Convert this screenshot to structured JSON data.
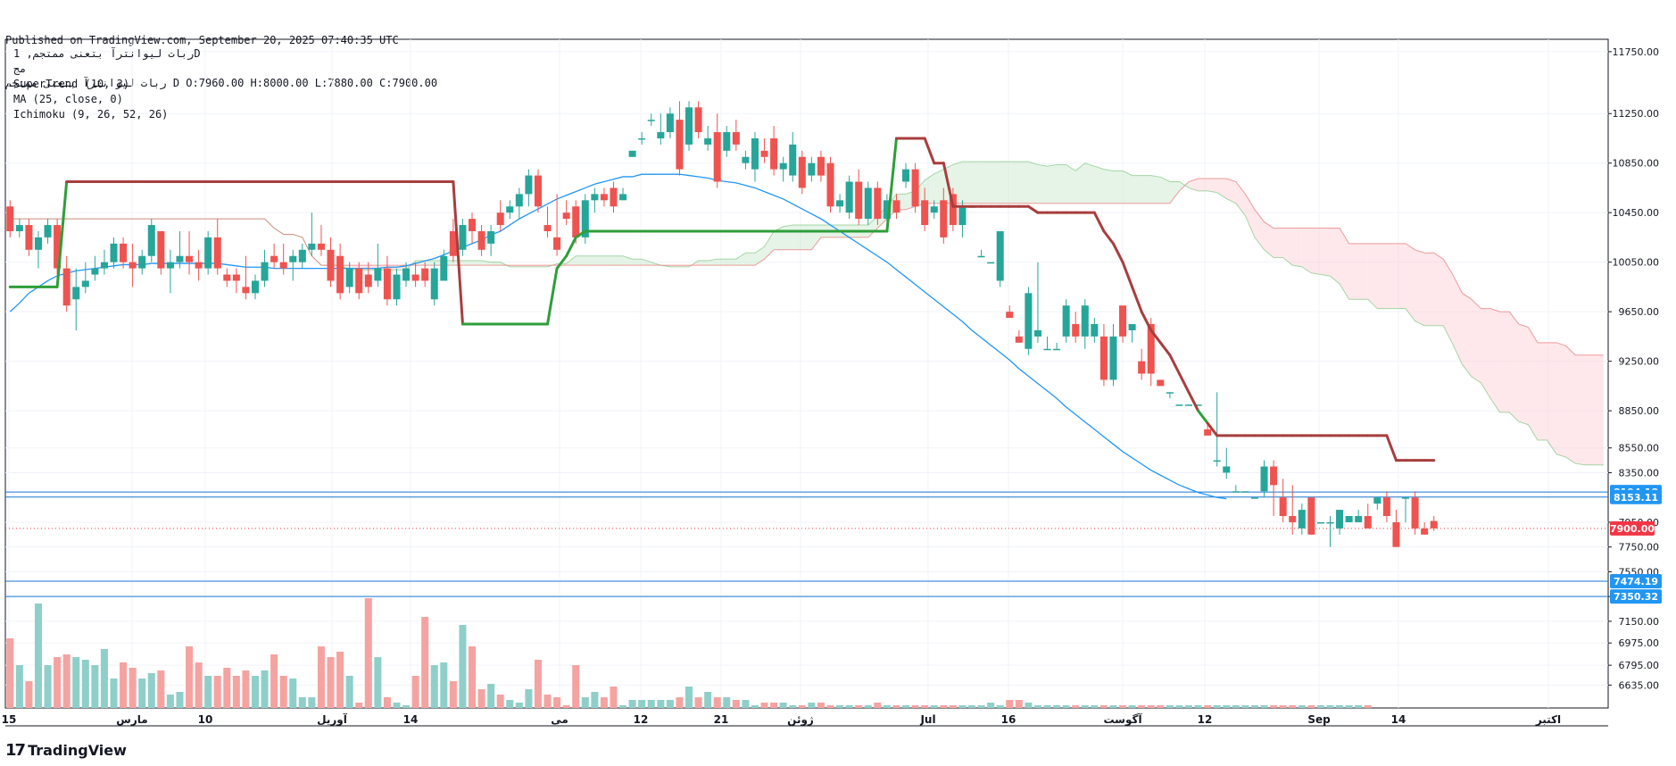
{
  "header": {
    "published": "Published on TradingView.com, September 20, 2025 07:40:35 UTC",
    "symbol": "ربات لیوانترآ بتعنی ممتجم",
    "ohlc": "D O:7960.00 H:8000.00 L:7880.00 C:7900.00"
  },
  "legend": {
    "title": "ربات لیوانترآ بتعنی ممتجم, 1D",
    "sub": "مج",
    "supertrend": "SuperTrend (10, 3)",
    "ma": "MA (25, close, 0)",
    "ichimoku": "Ichimoku (9, 26, 52, 26)"
  },
  "footer": {
    "brand": "TradingView",
    "logo": "17"
  },
  "colors": {
    "up": "#26a69a",
    "down": "#ef5350",
    "vol_up": "#8fcfc9",
    "vol_down": "#f5a3a1",
    "ma": "#2196f3",
    "st_up": "#2e9e3a",
    "st_down": "#a83e3e",
    "cloud_bull": "#c8e6c9",
    "cloud_bear": "#ffcdd2",
    "hline": "#1976d2",
    "price_label": "#2196f3",
    "last_price": "#f23645"
  },
  "chart_data": {
    "type": "candlestick",
    "title": "ربات لیوانترآ بتعنی ممتجم, 1D",
    "ylim": [
      6450,
      11850
    ],
    "y_ticks": [
      11750,
      11250,
      10850,
      10450,
      10050,
      9650,
      9250,
      8850,
      8550,
      8350,
      7950,
      7750,
      7550,
      7350,
      7150,
      6975,
      6795,
      6635
    ],
    "x_ticks": [
      "15",
      "مارس",
      "10",
      "آوریل",
      "14",
      "می",
      "12",
      "21",
      "ژوئن",
      "Jul",
      "16",
      "آگوست",
      "12",
      "Sep",
      "14",
      "اکتبر"
    ],
    "last_price": 7900.0,
    "horizontal_lines": [
      8194.18,
      8153.11,
      7474.19,
      7350.32
    ],
    "candles": [
      [
        10500,
        10550,
        10250,
        10300
      ],
      [
        10300,
        10400,
        10250,
        10350
      ],
      [
        10350,
        10400,
        10100,
        10150
      ],
      [
        10150,
        10300,
        10000,
        10250
      ],
      [
        10250,
        10400,
        10200,
        10350
      ],
      [
        10350,
        10400,
        9950,
        10000
      ],
      [
        10000,
        10100,
        9650,
        9700
      ],
      [
        9750,
        10000,
        9500,
        9850
      ],
      [
        9850,
        10050,
        9800,
        9900
      ],
      [
        9950,
        10100,
        9900,
        10000
      ],
      [
        10000,
        10150,
        9950,
        10050
      ],
      [
        10050,
        10250,
        10000,
        10200
      ],
      [
        10200,
        10250,
        10000,
        10050
      ],
      [
        10050,
        10200,
        9850,
        10000
      ],
      [
        10000,
        10150,
        9950,
        10100
      ],
      [
        10100,
        10400,
        10050,
        10350
      ],
      [
        10300,
        10300,
        9950,
        10000
      ],
      [
        10000,
        10150,
        9800,
        10050
      ],
      [
        10050,
        10300,
        10000,
        10100
      ],
      [
        10100,
        10300,
        9950,
        10050
      ],
      [
        10050,
        10150,
        9900,
        10000
      ],
      [
        10000,
        10300,
        9950,
        10250
      ],
      [
        10250,
        10400,
        9950,
        10000
      ],
      [
        9950,
        10000,
        9850,
        9900
      ],
      [
        9950,
        10000,
        9800,
        9900
      ],
      [
        9850,
        10100,
        9750,
        9800
      ],
      [
        9800,
        9950,
        9750,
        9900
      ],
      [
        9900,
        10150,
        9850,
        10050
      ],
      [
        10100,
        10200,
        10000,
        10050
      ],
      [
        10050,
        10200,
        9950,
        10000
      ],
      [
        10050,
        10150,
        9900,
        10100
      ],
      [
        10050,
        10200,
        10000,
        10150
      ],
      [
        10150,
        10450,
        10100,
        10200
      ],
      [
        10200,
        10350,
        10100,
        10150
      ],
      [
        10150,
        10250,
        9850,
        9900
      ],
      [
        10100,
        10200,
        9750,
        9800
      ],
      [
        9850,
        10050,
        9800,
        10000
      ],
      [
        10000,
        10050,
        9750,
        9800
      ],
      [
        9950,
        10050,
        9800,
        9850
      ],
      [
        9900,
        10200,
        9850,
        10000
      ],
      [
        10000,
        10100,
        9700,
        9750
      ],
      [
        9750,
        10000,
        9700,
        9950
      ],
      [
        9900,
        10050,
        9850,
        10000
      ],
      [
        9950,
        10050,
        9850,
        9900
      ],
      [
        10000,
        10050,
        9850,
        9900
      ],
      [
        9750,
        10050,
        9700,
        10000
      ],
      [
        9900,
        10150,
        9900,
        10100
      ],
      [
        10300,
        10400,
        10050,
        10100
      ],
      [
        10150,
        10400,
        10100,
        10350
      ],
      [
        10400,
        10450,
        10200,
        10300
      ],
      [
        10300,
        10350,
        10100,
        10150
      ],
      [
        10200,
        10350,
        10100,
        10300
      ],
      [
        10450,
        10550,
        10300,
        10350
      ],
      [
        10450,
        10550,
        10400,
        10500
      ],
      [
        10500,
        10650,
        10400,
        10600
      ],
      [
        10600,
        10800,
        10500,
        10750
      ],
      [
        10750,
        10800,
        10450,
        10500
      ],
      [
        10350,
        10500,
        10250,
        10300
      ],
      [
        10250,
        10600,
        10100,
        10150
      ],
      [
        10450,
        10550,
        10350,
        10400
      ],
      [
        10500,
        10550,
        10200,
        10250
      ],
      [
        10250,
        10600,
        10200,
        10550
      ],
      [
        10550,
        10650,
        10450,
        10600
      ],
      [
        10600,
        10650,
        10500,
        10550
      ],
      [
        10650,
        10700,
        10450,
        10500
      ],
      [
        10550,
        10650,
        10550,
        10600
      ],
      [
        10900,
        10950,
        10900,
        10950
      ],
      [
        11050,
        11100,
        11000,
        11050
      ],
      [
        11200,
        11250,
        11150,
        11200
      ],
      [
        11050,
        11250,
        11000,
        11100
      ],
      [
        11100,
        11300,
        11050,
        11250
      ],
      [
        11200,
        11350,
        10750,
        10800
      ],
      [
        11000,
        11350,
        10950,
        11300
      ],
      [
        11300,
        11350,
        11050,
        11100
      ],
      [
        11000,
        11150,
        10950,
        11050
      ],
      [
        11100,
        11250,
        10650,
        10700
      ],
      [
        10950,
        11150,
        10900,
        11100
      ],
      [
        11100,
        11200,
        10950,
        11000
      ],
      [
        10850,
        10950,
        10800,
        10900
      ],
      [
        10800,
        11100,
        10700,
        11050
      ],
      [
        10950,
        11050,
        10850,
        10900
      ],
      [
        11050,
        11150,
        10750,
        10800
      ],
      [
        10800,
        10900,
        10700,
        10850
      ],
      [
        10750,
        11100,
        10700,
        11000
      ],
      [
        10900,
        10950,
        10600,
        10650
      ],
      [
        10750,
        10900,
        10700,
        10850
      ],
      [
        10900,
        10950,
        10700,
        10750
      ],
      [
        10850,
        10900,
        10450,
        10500
      ],
      [
        10500,
        10600,
        10450,
        10550
      ],
      [
        10450,
        10750,
        10400,
        10700
      ],
      [
        10700,
        10800,
        10350,
        10400
      ],
      [
        10400,
        10700,
        10350,
        10650
      ],
      [
        10650,
        10700,
        10350,
        10400
      ],
      [
        10400,
        10600,
        10350,
        10550
      ],
      [
        10550,
        10600,
        10400,
        10450
      ],
      [
        10700,
        10850,
        10650,
        10800
      ],
      [
        10800,
        10850,
        10450,
        10500
      ],
      [
        10550,
        10650,
        10300,
        10350
      ],
      [
        10450,
        10550,
        10400,
        10500
      ],
      [
        10550,
        10650,
        10200,
        10250
      ],
      [
        10600,
        10650,
        10300,
        10350
      ],
      [
        10350,
        10550,
        10250,
        10500
      ],
      [
        10500,
        10500,
        10500,
        10500
      ],
      [
        10100,
        10150,
        10100,
        10100
      ],
      [
        10050,
        10050,
        10050,
        10050
      ],
      [
        9900,
        10300,
        9850,
        10300
      ],
      [
        9650,
        9700,
        9600,
        9600
      ],
      [
        9450,
        9500,
        9400,
        9400
      ],
      [
        9350,
        9850,
        9300,
        9800
      ],
      [
        9450,
        10050,
        9400,
        9500
      ],
      [
        9350,
        9450,
        9350,
        9350
      ],
      [
        9350,
        9400,
        9350,
        9350
      ],
      [
        9450,
        9750,
        9400,
        9700
      ],
      [
        9550,
        9650,
        9400,
        9450
      ],
      [
        9450,
        9750,
        9350,
        9700
      ],
      [
        9450,
        9600,
        9400,
        9550
      ],
      [
        9450,
        9550,
        9050,
        9100
      ],
      [
        9100,
        9550,
        9050,
        9450
      ],
      [
        9700,
        9700,
        9400,
        9450
      ],
      [
        9500,
        9550,
        9400,
        9550
      ],
      [
        9250,
        9350,
        9100,
        9150
      ],
      [
        9550,
        9600,
        9050,
        9150
      ],
      [
        9100,
        9100,
        9050,
        9050
      ],
      [
        9000,
        9000,
        8950,
        9000
      ],
      [
        8900,
        8900,
        8900,
        8900
      ],
      [
        8900,
        8900,
        8900,
        8900
      ],
      [
        8900,
        8900,
        8900,
        8900
      ],
      [
        8700,
        8750,
        8650,
        8650
      ],
      [
        8450,
        9000,
        8400,
        8450
      ],
      [
        8350,
        8550,
        8300,
        8400
      ],
      [
        8200,
        8250,
        8200,
        8200
      ],
      [
        8200,
        8200,
        8200,
        8200
      ],
      [
        8150,
        8150,
        8150,
        8150
      ],
      [
        8200,
        8450,
        8150,
        8400
      ],
      [
        8400,
        8450,
        8000,
        8250
      ],
      [
        8150,
        8300,
        7950,
        8000
      ],
      [
        8000,
        8250,
        7850,
        7950
      ],
      [
        7900,
        8100,
        7850,
        8050
      ],
      [
        8150,
        8150,
        7850,
        7850
      ],
      [
        7950,
        7950,
        7950,
        7950
      ],
      [
        7950,
        8000,
        7750,
        7950
      ],
      [
        7900,
        8050,
        7850,
        8050
      ],
      [
        7950,
        8000,
        7950,
        8000
      ],
      [
        7950,
        8050,
        7950,
        8000
      ],
      [
        8000,
        8100,
        7900,
        7900
      ],
      [
        8100,
        8150,
        8050,
        8150
      ],
      [
        8150,
        8200,
        7950,
        8000
      ],
      [
        7950,
        8050,
        7750,
        7750
      ],
      [
        8150,
        8150,
        7950,
        8150
      ],
      [
        8150,
        8200,
        7850,
        7900
      ],
      [
        7900,
        7950,
        7850,
        7850
      ],
      [
        7960,
        8000,
        7880,
        7900
      ]
    ],
    "volume": [
      26,
      16,
      10,
      39,
      16,
      19,
      20,
      19,
      18,
      16,
      22,
      11,
      17,
      15,
      11,
      13,
      14,
      5,
      6,
      23,
      17,
      12,
      12,
      15,
      12,
      14,
      12,
      14,
      20,
      12,
      11,
      4,
      4,
      23,
      19,
      21,
      12,
      2,
      41,
      19,
      4,
      2,
      1,
      12,
      34,
      16,
      17,
      10,
      31,
      23,
      7,
      9,
      5,
      3,
      2,
      7,
      18,
      5,
      4,
      1,
      16,
      4,
      6,
      4,
      8,
      1,
      3,
      3,
      3,
      3,
      3,
      4,
      8,
      4,
      6,
      4,
      4,
      3,
      3,
      1,
      2,
      2,
      2,
      1,
      1,
      2,
      2,
      1,
      1,
      1,
      1,
      1,
      2,
      1,
      1,
      1,
      1,
      1,
      1,
      1,
      1,
      1,
      1,
      1,
      2,
      1,
      3,
      3,
      2,
      1,
      1,
      1,
      1,
      1,
      1,
      1,
      1,
      1,
      1,
      1,
      1,
      1,
      1,
      1,
      1,
      1,
      1,
      1,
      1,
      1,
      1,
      1,
      1,
      1,
      1,
      1,
      1,
      1,
      1,
      1,
      1,
      1,
      1,
      1,
      1
    ],
    "ma": [
      9650,
      9720,
      9800,
      9850,
      9900,
      9940,
      9960,
      9980,
      9990,
      10000,
      10010,
      10020,
      10030,
      10030,
      10030,
      10040,
      10040,
      10040,
      10040,
      10040,
      10040,
      10040,
      10040,
      10030,
      10020,
      10010,
      10010,
      10010,
      10000,
      10000,
      10000,
      10000,
      10000,
      10000,
      10000,
      10000,
      10000,
      10000,
      10000,
      10000,
      10010,
      10010,
      10020,
      10040,
      10060,
      10080,
      10110,
      10140,
      10170,
      10200,
      10230,
      10270,
      10300,
      10350,
      10400,
      10440,
      10480,
      10520,
      10560,
      10590,
      10620,
      10650,
      10680,
      10700,
      10720,
      10740,
      10740,
      10760,
      10760,
      10760,
      10760,
      10760,
      10750,
      10740,
      10730,
      10710,
      10700,
      10690,
      10670,
      10650,
      10620,
      10590,
      10560,
      10520,
      10480,
      10440,
      10400,
      10350,
      10300,
      10250,
      10200,
      10150,
      10100,
      10050,
      9990,
      9930,
      9870,
      9810,
      9750,
      9690,
      9630,
      9570,
      9500,
      9440,
      9380,
      9320,
      9260,
      9190,
      9130,
      9070,
      9010,
      8950,
      8880,
      8820,
      8760,
      8700,
      8640,
      8580,
      8520,
      8470,
      8420,
      8370,
      8330,
      8290,
      8250,
      8220,
      8190,
      8170,
      8150,
      8140
    ],
    "supertrend": [
      9850,
      9850,
      9850,
      9850,
      9850,
      9850,
      10700,
      10700,
      10700,
      10700,
      10700,
      10700,
      10700,
      10700,
      10700,
      10700,
      10700,
      10700,
      10700,
      10700,
      10700,
      10700,
      10700,
      10700,
      10700,
      10700,
      10700,
      10700,
      10700,
      10700,
      10700,
      10700,
      10700,
      10700,
      10700,
      10700,
      10700,
      10700,
      10700,
      10700,
      10700,
      10700,
      10700,
      10700,
      10700,
      10700,
      10700,
      10700,
      9550,
      9550,
      9550,
      9550,
      9550,
      9550,
      9550,
      9550,
      9550,
      9550,
      10000,
      10100,
      10250,
      10300,
      10300,
      10300,
      10300,
      10300,
      10300,
      10300,
      10300,
      10300,
      10300,
      10300,
      10300,
      10300,
      10300,
      10300,
      10300,
      10300,
      10300,
      10300,
      10300,
      10300,
      10300,
      10300,
      10300,
      10300,
      10300,
      10300,
      10300,
      10300,
      10300,
      10300,
      10300,
      10300,
      11050,
      11050,
      11050,
      11050,
      10850,
      10850,
      10500,
      10500,
      10500,
      10500,
      10500,
      10500,
      10500,
      10500,
      10500,
      10450,
      10450,
      10450,
      10450,
      10450,
      10450,
      10450,
      10300,
      10200,
      10050,
      9850,
      9650,
      9500,
      9400,
      9300,
      9150,
      9000,
      8850,
      8750,
      8650,
      8650,
      8650,
      8650,
      8650,
      8650,
      8650,
      8650,
      8650,
      8650,
      8650,
      8650,
      8650,
      8650,
      8650,
      8650,
      8650,
      8650,
      8650,
      8450,
      8450,
      8450,
      8450,
      8450
    ]
  }
}
